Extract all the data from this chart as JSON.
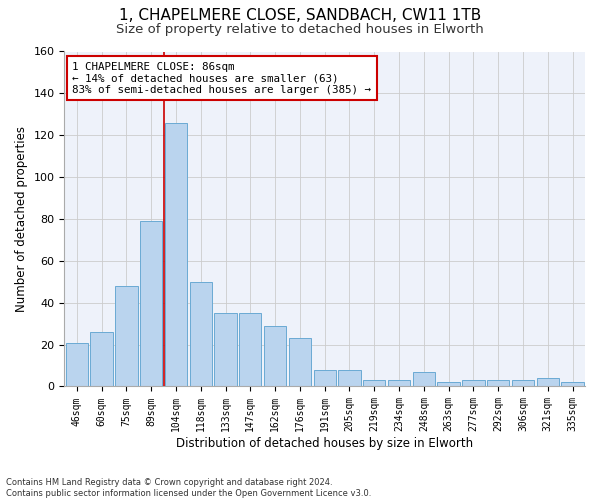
{
  "title1": "1, CHAPELMERE CLOSE, SANDBACH, CW11 1TB",
  "title2": "Size of property relative to detached houses in Elworth",
  "xlabel": "Distribution of detached houses by size in Elworth",
  "ylabel": "Number of detached properties",
  "categories": [
    "46sqm",
    "60sqm",
    "75sqm",
    "89sqm",
    "104sqm",
    "118sqm",
    "133sqm",
    "147sqm",
    "162sqm",
    "176sqm",
    "191sqm",
    "205sqm",
    "219sqm",
    "234sqm",
    "248sqm",
    "263sqm",
    "277sqm",
    "292sqm",
    "306sqm",
    "321sqm",
    "335sqm"
  ],
  "values": [
    21,
    26,
    48,
    79,
    126,
    50,
    35,
    35,
    29,
    23,
    8,
    8,
    3,
    3,
    7,
    2,
    3,
    3,
    3,
    4,
    2
  ],
  "bar_color": "#bad4ee",
  "bar_edge_color": "#6aaad4",
  "vline_x": 3.5,
  "vline_color": "#cc0000",
  "annotation_text": "1 CHAPELMERE CLOSE: 86sqm\n← 14% of detached houses are smaller (63)\n83% of semi-detached houses are larger (385) →",
  "annotation_box_color": "#ffffff",
  "annotation_box_edge": "#cc0000",
  "footer": "Contains HM Land Registry data © Crown copyright and database right 2024.\nContains public sector information licensed under the Open Government Licence v3.0.",
  "ylim": [
    0,
    160
  ],
  "yticks": [
    0,
    20,
    40,
    60,
    80,
    100,
    120,
    140,
    160
  ],
  "grid_color": "#cccccc",
  "background_color": "#eef2fa",
  "title1_fontsize": 11,
  "title2_fontsize": 9.5
}
